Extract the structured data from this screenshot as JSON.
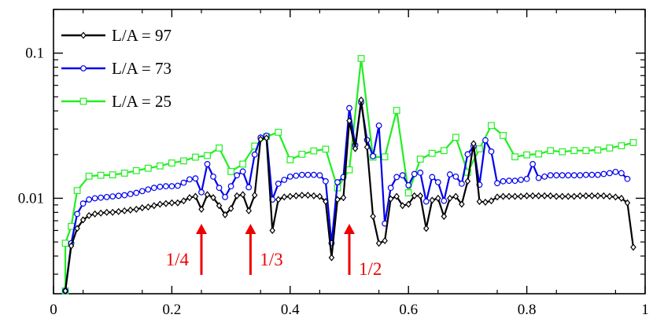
{
  "chart_data": {
    "type": "line",
    "title": "",
    "xlabel": "",
    "ylabel": "",
    "xlim": [
      0,
      1
    ],
    "ylim": [
      0.0022,
      0.2
    ],
    "y_scale": "log",
    "x_ticks": [
      0,
      0.2,
      0.4,
      0.6,
      0.8,
      1
    ],
    "x_tick_labels": [
      "0",
      "0.2",
      "0.4",
      "0.6",
      "0.8",
      "1"
    ],
    "y_ticks": [
      0.01,
      0.1
    ],
    "y_tick_labels": [
      "0.01",
      "0.1"
    ],
    "legend_position": "top-left",
    "grid": false,
    "series": [
      {
        "name": "L/A = 97",
        "color": "#000000",
        "marker": "diamond",
        "points": [
          [
            0.02,
            0.0023
          ],
          [
            0.03,
            0.0047
          ],
          [
            0.04,
            0.0062
          ],
          [
            0.05,
            0.0071
          ],
          [
            0.06,
            0.0076
          ],
          [
            0.07,
            0.0078
          ],
          [
            0.08,
            0.0079
          ],
          [
            0.09,
            0.008
          ],
          [
            0.1,
            0.008
          ],
          [
            0.11,
            0.0081
          ],
          [
            0.12,
            0.0082
          ],
          [
            0.13,
            0.0083
          ],
          [
            0.14,
            0.0084
          ],
          [
            0.15,
            0.0086
          ],
          [
            0.16,
            0.0087
          ],
          [
            0.17,
            0.0089
          ],
          [
            0.18,
            0.0091
          ],
          [
            0.19,
            0.0092
          ],
          [
            0.2,
            0.0093
          ],
          [
            0.21,
            0.0093
          ],
          [
            0.22,
            0.0096
          ],
          [
            0.23,
            0.0101
          ],
          [
            0.24,
            0.0103
          ],
          [
            0.25,
            0.0084
          ],
          [
            0.26,
            0.0106
          ],
          [
            0.27,
            0.0101
          ],
          [
            0.28,
            0.0089
          ],
          [
            0.29,
            0.0077
          ],
          [
            0.3,
            0.0085
          ],
          [
            0.31,
            0.0104
          ],
          [
            0.32,
            0.0106
          ],
          [
            0.33,
            0.0082
          ],
          [
            0.34,
            0.0105
          ],
          [
            0.35,
            0.0255
          ],
          [
            0.36,
            0.026
          ],
          [
            0.37,
            0.006
          ],
          [
            0.38,
            0.0098
          ],
          [
            0.39,
            0.0102
          ],
          [
            0.4,
            0.0103
          ],
          [
            0.41,
            0.0104
          ],
          [
            0.42,
            0.0105
          ],
          [
            0.43,
            0.0105
          ],
          [
            0.44,
            0.0104
          ],
          [
            0.45,
            0.0103
          ],
          [
            0.46,
            0.0095
          ],
          [
            0.47,
            0.0039
          ],
          [
            0.48,
            0.0098
          ],
          [
            0.49,
            0.0101
          ],
          [
            0.5,
            0.0342
          ],
          [
            0.51,
            0.022
          ],
          [
            0.52,
            0.0475
          ],
          [
            0.53,
            0.0225
          ],
          [
            0.54,
            0.0075
          ],
          [
            0.55,
            0.0049
          ],
          [
            0.56,
            0.0051
          ],
          [
            0.57,
            0.0099
          ],
          [
            0.58,
            0.0103
          ],
          [
            0.59,
            0.0089
          ],
          [
            0.6,
            0.0091
          ],
          [
            0.61,
            0.0104
          ],
          [
            0.62,
            0.0104
          ],
          [
            0.63,
            0.0062
          ],
          [
            0.64,
            0.0097
          ],
          [
            0.65,
            0.01
          ],
          [
            0.66,
            0.0075
          ],
          [
            0.67,
            0.01
          ],
          [
            0.68,
            0.0103
          ],
          [
            0.69,
            0.0091
          ],
          [
            0.7,
            0.0131
          ],
          [
            0.71,
            0.0238
          ],
          [
            0.72,
            0.0095
          ],
          [
            0.73,
            0.0094
          ],
          [
            0.74,
            0.0096
          ],
          [
            0.75,
            0.0102
          ],
          [
            0.76,
            0.0103
          ],
          [
            0.77,
            0.0103
          ],
          [
            0.78,
            0.0103
          ],
          [
            0.79,
            0.0103
          ],
          [
            0.8,
            0.0104
          ],
          [
            0.81,
            0.0104
          ],
          [
            0.82,
            0.0104
          ],
          [
            0.83,
            0.0104
          ],
          [
            0.84,
            0.0104
          ],
          [
            0.85,
            0.0103
          ],
          [
            0.86,
            0.0103
          ],
          [
            0.87,
            0.0103
          ],
          [
            0.88,
            0.0103
          ],
          [
            0.89,
            0.0104
          ],
          [
            0.9,
            0.0104
          ],
          [
            0.91,
            0.0104
          ],
          [
            0.92,
            0.0104
          ],
          [
            0.93,
            0.0104
          ],
          [
            0.94,
            0.0103
          ],
          [
            0.95,
            0.0102
          ],
          [
            0.96,
            0.01
          ],
          [
            0.97,
            0.0093
          ],
          [
            0.98,
            0.0046
          ]
        ]
      },
      {
        "name": "L/A = 73",
        "color": "#0000ee",
        "marker": "circle",
        "points": [
          [
            0.02,
            0.0023
          ],
          [
            0.03,
            0.0049
          ],
          [
            0.04,
            0.0078
          ],
          [
            0.05,
            0.0092
          ],
          [
            0.06,
            0.0098
          ],
          [
            0.07,
            0.01
          ],
          [
            0.08,
            0.0101
          ],
          [
            0.09,
            0.0102
          ],
          [
            0.1,
            0.0103
          ],
          [
            0.11,
            0.0104
          ],
          [
            0.12,
            0.0105
          ],
          [
            0.13,
            0.0107
          ],
          [
            0.14,
            0.0109
          ],
          [
            0.15,
            0.0112
          ],
          [
            0.16,
            0.0115
          ],
          [
            0.17,
            0.0118
          ],
          [
            0.18,
            0.012
          ],
          [
            0.19,
            0.0121
          ],
          [
            0.2,
            0.0121
          ],
          [
            0.21,
            0.0122
          ],
          [
            0.22,
            0.0128
          ],
          [
            0.23,
            0.0135
          ],
          [
            0.24,
            0.0137
          ],
          [
            0.25,
            0.011
          ],
          [
            0.26,
            0.0172
          ],
          [
            0.27,
            0.0141
          ],
          [
            0.28,
            0.0118
          ],
          [
            0.29,
            0.0102
          ],
          [
            0.3,
            0.0121
          ],
          [
            0.31,
            0.0144
          ],
          [
            0.32,
            0.0153
          ],
          [
            0.33,
            0.0119
          ],
          [
            0.34,
            0.02
          ],
          [
            0.35,
            0.0262
          ],
          [
            0.36,
            0.027
          ],
          [
            0.37,
            0.0098
          ],
          [
            0.38,
            0.0126
          ],
          [
            0.39,
            0.0134
          ],
          [
            0.4,
            0.0141
          ],
          [
            0.41,
            0.0143
          ],
          [
            0.42,
            0.0145
          ],
          [
            0.43,
            0.0145
          ],
          [
            0.44,
            0.0145
          ],
          [
            0.45,
            0.0144
          ],
          [
            0.46,
            0.0131
          ],
          [
            0.47,
            0.0049
          ],
          [
            0.48,
            0.0129
          ],
          [
            0.49,
            0.014
          ],
          [
            0.5,
            0.0418
          ],
          [
            0.51,
            0.0232
          ],
          [
            0.52,
            0.0458
          ],
          [
            0.53,
            0.0252
          ],
          [
            0.54,
            0.0195
          ],
          [
            0.55,
            0.0317
          ],
          [
            0.56,
            0.0067
          ],
          [
            0.57,
            0.0118
          ],
          [
            0.58,
            0.014
          ],
          [
            0.59,
            0.0144
          ],
          [
            0.6,
            0.0123
          ],
          [
            0.61,
            0.0147
          ],
          [
            0.62,
            0.015
          ],
          [
            0.63,
            0.0095
          ],
          [
            0.64,
            0.014
          ],
          [
            0.65,
            0.0129
          ],
          [
            0.66,
            0.0096
          ],
          [
            0.67,
            0.0146
          ],
          [
            0.68,
            0.0141
          ],
          [
            0.69,
            0.0126
          ],
          [
            0.7,
            0.0201
          ],
          [
            0.71,
            0.0228
          ],
          [
            0.72,
            0.0124
          ],
          [
            0.73,
            0.0251
          ],
          [
            0.74,
            0.021
          ],
          [
            0.75,
            0.0127
          ],
          [
            0.76,
            0.0131
          ],
          [
            0.77,
            0.0132
          ],
          [
            0.78,
            0.0132
          ],
          [
            0.79,
            0.0134
          ],
          [
            0.8,
            0.0136
          ],
          [
            0.81,
            0.0172
          ],
          [
            0.82,
            0.0138
          ],
          [
            0.83,
            0.0141
          ],
          [
            0.84,
            0.0144
          ],
          [
            0.85,
            0.0144
          ],
          [
            0.86,
            0.0144
          ],
          [
            0.87,
            0.0144
          ],
          [
            0.88,
            0.0144
          ],
          [
            0.89,
            0.0144
          ],
          [
            0.9,
            0.0145
          ],
          [
            0.91,
            0.0145
          ],
          [
            0.92,
            0.0145
          ],
          [
            0.93,
            0.0147
          ],
          [
            0.94,
            0.0149
          ],
          [
            0.95,
            0.0152
          ],
          [
            0.96,
            0.0149
          ],
          [
            0.97,
            0.0136
          ]
        ]
      },
      {
        "name": "L/A = 25",
        "color": "#22ee22",
        "marker": "square",
        "points": [
          [
            0.02,
            0.0023
          ],
          [
            0.02,
            0.0049
          ],
          [
            0.03,
            0.0064
          ],
          [
            0.04,
            0.0113
          ],
          [
            0.06,
            0.0142
          ],
          [
            0.08,
            0.0144
          ],
          [
            0.1,
            0.0145
          ],
          [
            0.12,
            0.0149
          ],
          [
            0.14,
            0.0155
          ],
          [
            0.16,
            0.0161
          ],
          [
            0.18,
            0.0167
          ],
          [
            0.2,
            0.0175
          ],
          [
            0.22,
            0.0181
          ],
          [
            0.24,
            0.0192
          ],
          [
            0.26,
            0.0197
          ],
          [
            0.28,
            0.0222
          ],
          [
            0.3,
            0.0153
          ],
          [
            0.32,
            0.0172
          ],
          [
            0.34,
            0.0229
          ],
          [
            0.36,
            0.0266
          ],
          [
            0.38,
            0.0285
          ],
          [
            0.4,
            0.0184
          ],
          [
            0.42,
            0.0201
          ],
          [
            0.44,
            0.0212
          ],
          [
            0.46,
            0.0218
          ],
          [
            0.48,
            0.0118
          ],
          [
            0.5,
            0.0157
          ],
          [
            0.52,
            0.0918
          ],
          [
            0.54,
            0.0192
          ],
          [
            0.56,
            0.0193
          ],
          [
            0.58,
            0.0403
          ],
          [
            0.6,
            0.0109
          ],
          [
            0.62,
            0.0186
          ],
          [
            0.64,
            0.0204
          ],
          [
            0.66,
            0.0213
          ],
          [
            0.68,
            0.0263
          ],
          [
            0.7,
            0.0151
          ],
          [
            0.72,
            0.0219
          ],
          [
            0.74,
            0.0317
          ],
          [
            0.76,
            0.0271
          ],
          [
            0.78,
            0.0193
          ],
          [
            0.8,
            0.0199
          ],
          [
            0.82,
            0.0202
          ],
          [
            0.84,
            0.0213
          ],
          [
            0.86,
            0.0209
          ],
          [
            0.88,
            0.0213
          ],
          [
            0.9,
            0.0213
          ],
          [
            0.92,
            0.0215
          ],
          [
            0.94,
            0.0222
          ],
          [
            0.96,
            0.023
          ],
          [
            0.98,
            0.0242
          ]
        ]
      }
    ],
    "annotations": [
      {
        "x": 0.25,
        "text": "1/4",
        "color": "#ee0000"
      },
      {
        "x": 0.333,
        "text": "1/3",
        "color": "#ee0000"
      },
      {
        "x": 0.5,
        "text": "1/2",
        "color": "#ee0000"
      }
    ]
  }
}
